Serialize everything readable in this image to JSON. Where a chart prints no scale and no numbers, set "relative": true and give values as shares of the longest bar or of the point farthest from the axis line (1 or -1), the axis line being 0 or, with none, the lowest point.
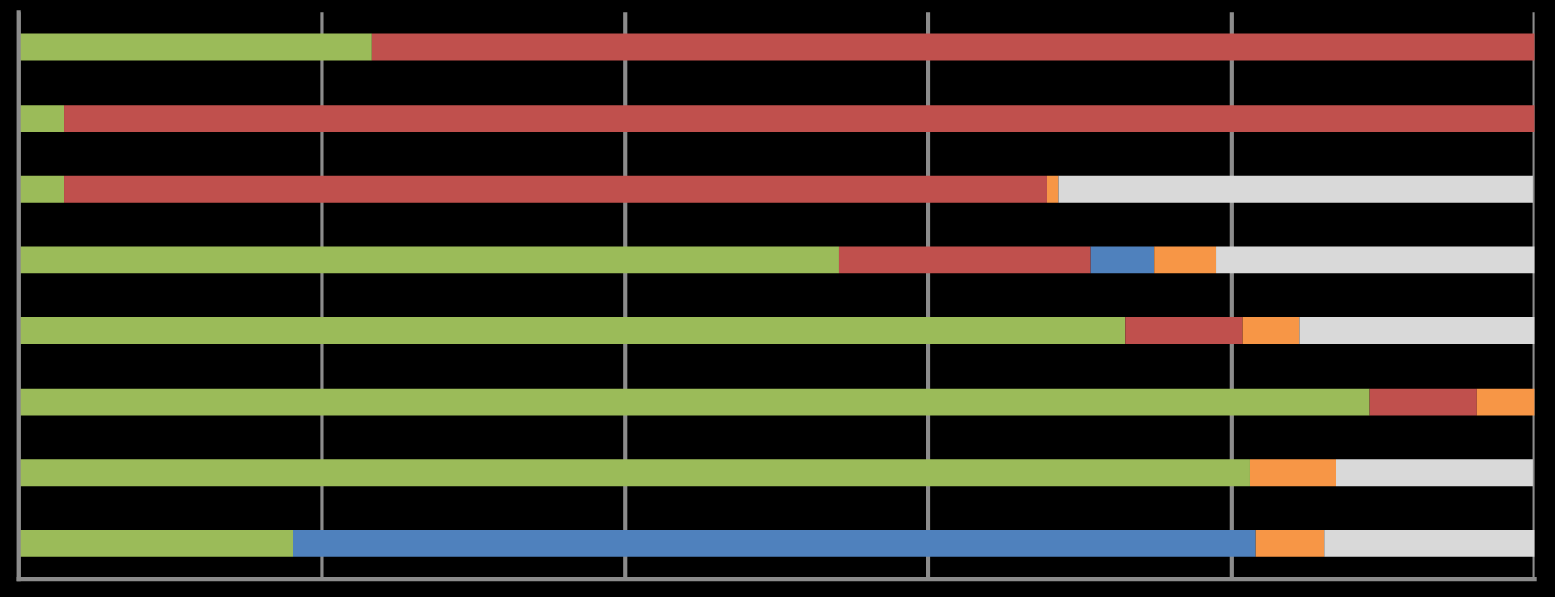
{
  "chart_data": {
    "type": "bar",
    "orientation": "horizontal",
    "stacked": true,
    "relative": true,
    "grid": "x",
    "categories": [
      null,
      null,
      null,
      null,
      null,
      null,
      null,
      null
    ],
    "series": [
      {
        "color": "#9bbb59",
        "values": [
          0.233,
          0.03,
          0.03,
          0.541,
          0.73,
          0.891,
          0.812,
          0.181
        ]
      },
      {
        "color": "#c0504d",
        "values": [
          0.767,
          0.97,
          0.648,
          0.166,
          0.077,
          0.071,
          0,
          0
        ]
      },
      {
        "color": "#4f81bd",
        "values": [
          0,
          0,
          0,
          0.042,
          0,
          0,
          0,
          0.635
        ]
      },
      {
        "color": "#f79646",
        "values": [
          0,
          0,
          0.008,
          0.041,
          0.038,
          0.038,
          0.057,
          0.045
        ]
      },
      {
        "color": "#d9d9d9",
        "values": [
          0,
          0,
          0.313,
          0.21,
          0.155,
          0,
          0.13,
          0.139
        ]
      }
    ]
  }
}
